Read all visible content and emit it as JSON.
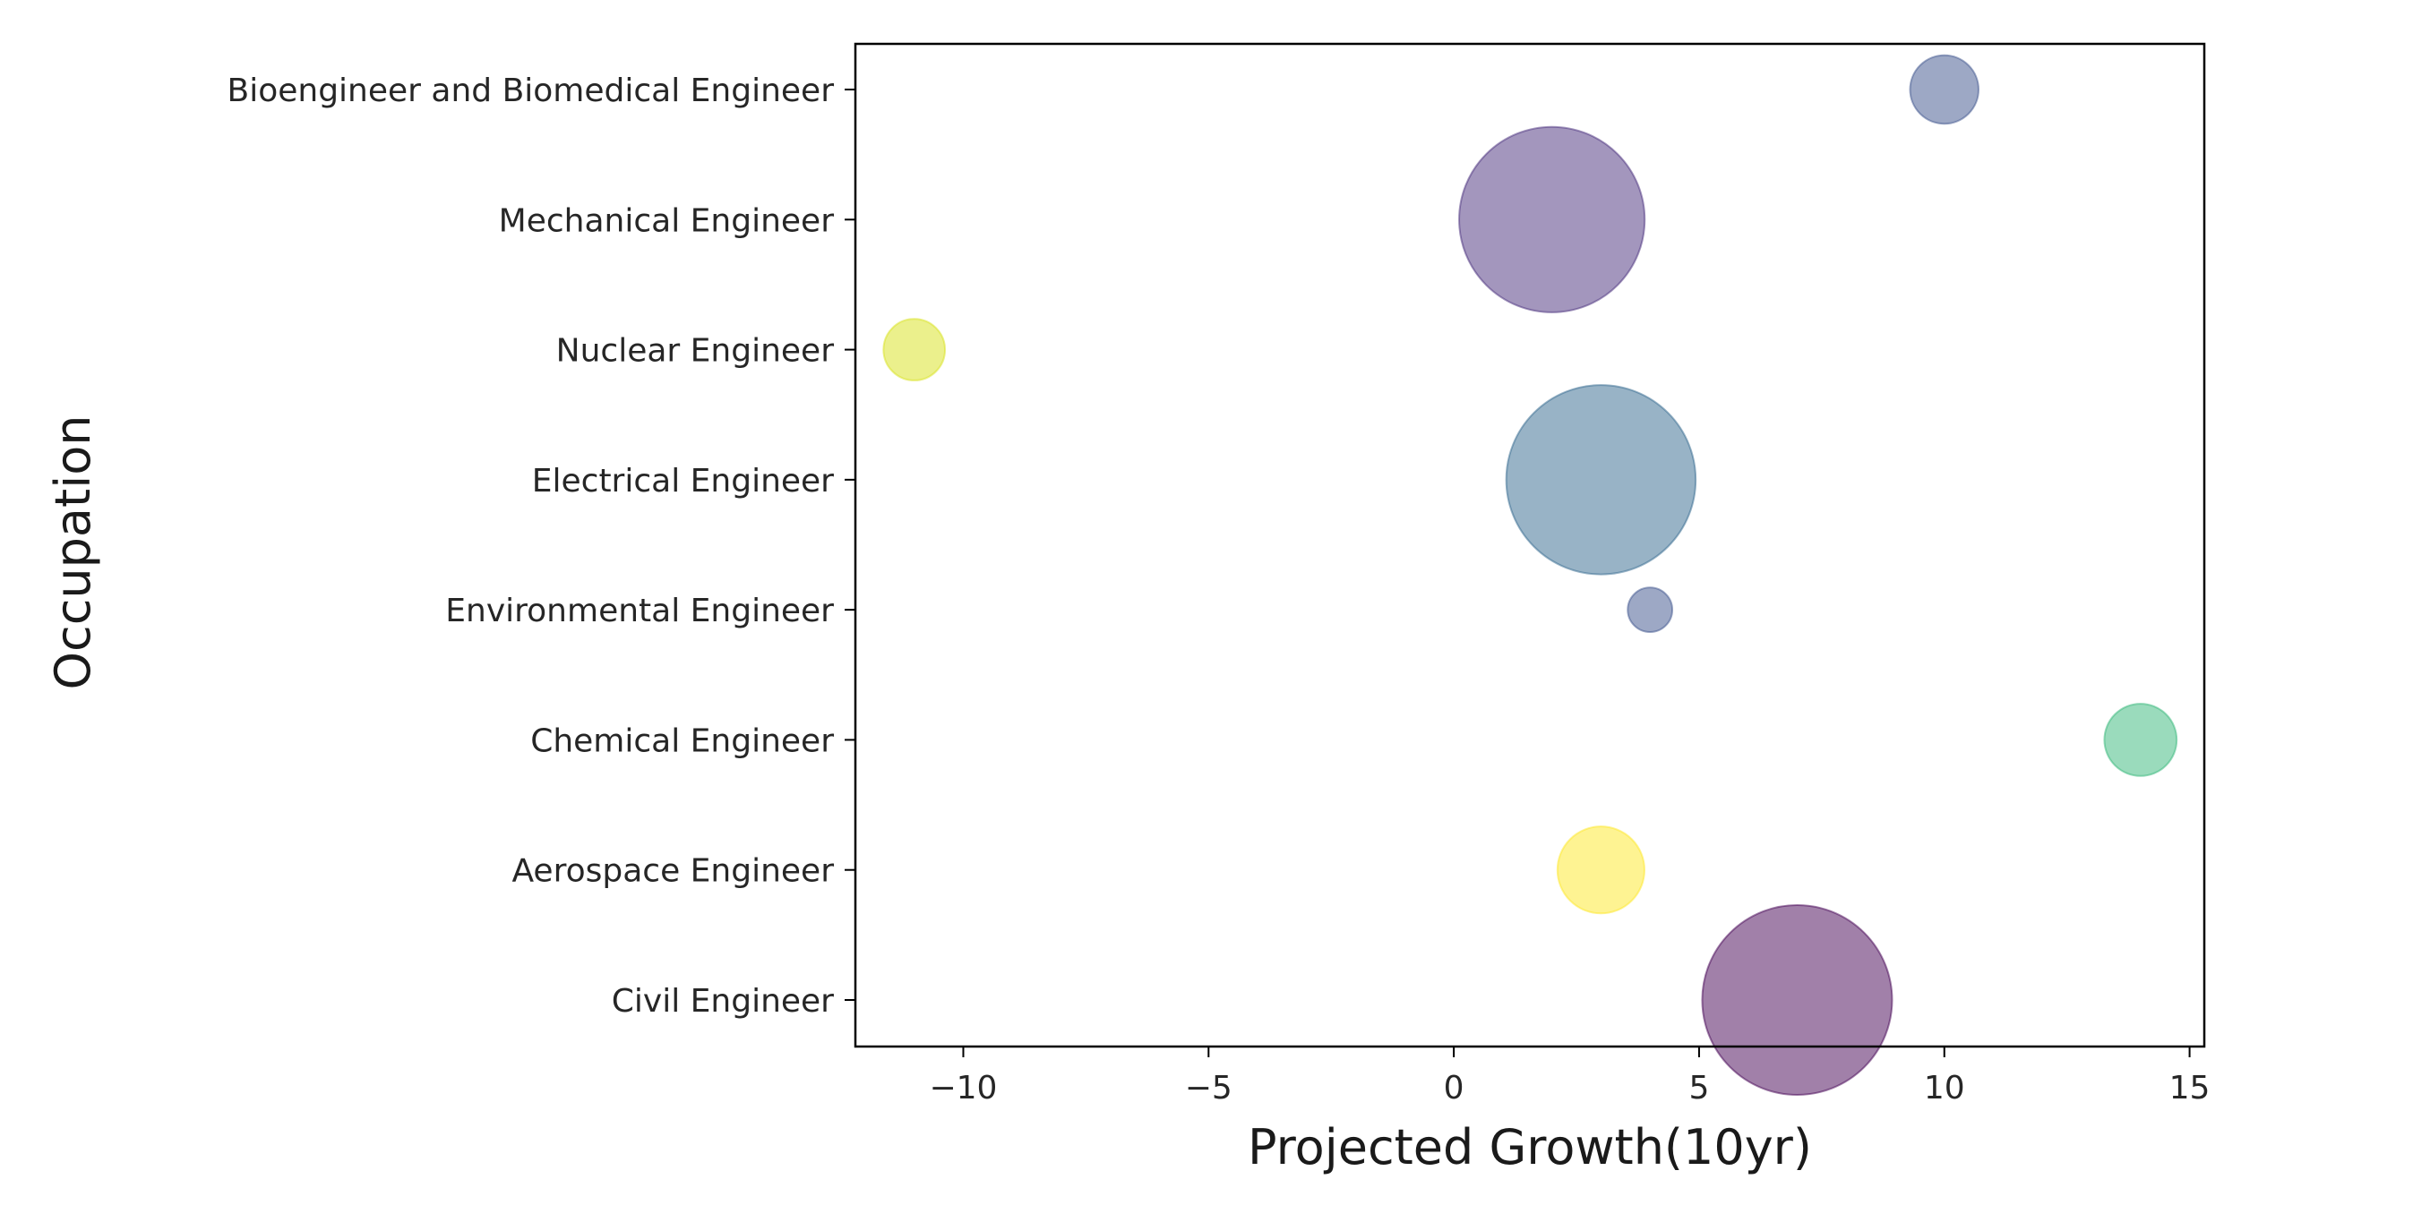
{
  "chart_data": {
    "type": "scatter",
    "xlabel": "Projected Growth(10yr)",
    "ylabel": "Occupation",
    "xlim": [
      -12.2,
      15.3
    ],
    "x_ticks": [
      {
        "value": -10,
        "label": "−10"
      },
      {
        "value": -5,
        "label": "−5"
      },
      {
        "value": 0,
        "label": "0"
      },
      {
        "value": 5,
        "label": "5"
      },
      {
        "value": 10,
        "label": "10"
      },
      {
        "value": 15,
        "label": "15"
      }
    ],
    "categories": [
      "Civil Engineer",
      "Aerospace Engineer",
      "Chemical Engineer",
      "Environmental Engineer",
      "Electrical Engineer",
      "Nuclear Engineer",
      "Mechanical Engineer",
      "Bioengineer and Biomedical Engineer"
    ],
    "points": [
      {
        "category": "Civil Engineer",
        "x": 7,
        "relative_size": 1.0,
        "color": "#440154"
      },
      {
        "category": "Aerospace Engineer",
        "x": 3,
        "relative_size": 0.21,
        "color": "#fde725"
      },
      {
        "category": "Chemical Engineer",
        "x": 14,
        "relative_size": 0.145,
        "color": "#35b779"
      },
      {
        "category": "Environmental Engineer",
        "x": 4,
        "relative_size": 0.055,
        "color": "#3b528b"
      },
      {
        "category": "Electrical Engineer",
        "x": 3,
        "relative_size": 0.995,
        "color": "#31688e"
      },
      {
        "category": "Nuclear Engineer",
        "x": -11,
        "relative_size": 0.105,
        "color": "#d8e219"
      },
      {
        "category": "Mechanical Engineer",
        "x": 2,
        "relative_size": 0.955,
        "color": "#472d7b"
      },
      {
        "category": "Bioengineer and Biomedical Engineer",
        "x": 10,
        "relative_size": 0.13,
        "color": "#3b528b"
      }
    ],
    "alpha": 0.5,
    "grid": false,
    "legend": "none"
  }
}
